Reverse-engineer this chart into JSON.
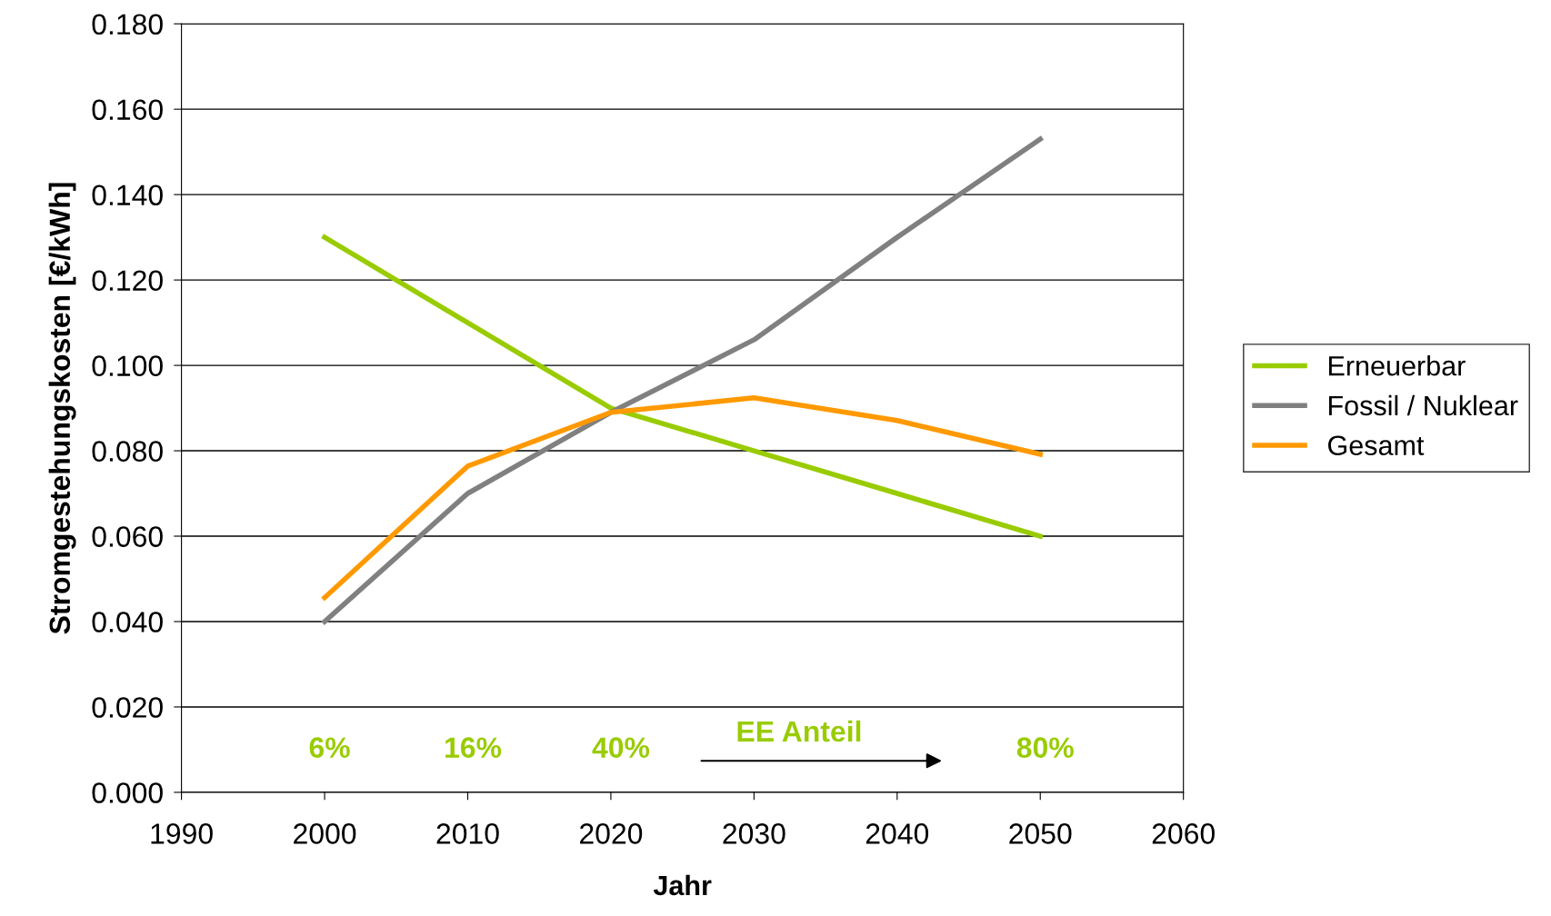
{
  "chart_data": {
    "type": "line",
    "xlabel": "Jahr",
    "ylabel": "Stromgestehungskosten [€/kWh]",
    "x": [
      2000,
      2010,
      2020,
      2030,
      2040,
      2050
    ],
    "series": [
      {
        "name": "Erneuerbar",
        "color": "#99cc00",
        "values": [
          0.13,
          0.11,
          0.09,
          0.08,
          0.07,
          0.06
        ]
      },
      {
        "name": "Fossil / Nuklear",
        "color": "#808080",
        "values": [
          0.04,
          0.07,
          0.089,
          0.106,
          0.13,
          0.153
        ]
      },
      {
        "name": "Gesamt",
        "color": "#ff9900",
        "values": [
          0.0456,
          0.0764,
          0.089,
          0.0924,
          0.0871,
          0.0792
        ]
      }
    ],
    "xlim": [
      1990,
      2060
    ],
    "xticks": [
      1990,
      2000,
      2010,
      2020,
      2030,
      2040,
      2050,
      2060
    ],
    "ylim": [
      0,
      0.18
    ],
    "yticks": [
      {
        "value": 0,
        "label": "0.000"
      },
      {
        "value": 0.02,
        "label": "0.020"
      },
      {
        "value": 0.04,
        "label": "0.040"
      },
      {
        "value": 0.06,
        "label": "0.060"
      },
      {
        "value": 0.08,
        "label": "0.080"
      },
      {
        "value": 0.1,
        "label": "0.100"
      },
      {
        "value": 0.12,
        "label": "0.120"
      },
      {
        "value": 0.14,
        "label": "0.140"
      },
      {
        "value": 0.16,
        "label": "0.160"
      },
      {
        "value": 0.18,
        "label": "0.180"
      }
    ],
    "grid": "y",
    "legend": "right",
    "marker": "none",
    "line_style": "solid",
    "annotations": [
      "6%",
      "16%",
      "40%",
      "EE Anteil",
      "80%"
    ]
  }
}
